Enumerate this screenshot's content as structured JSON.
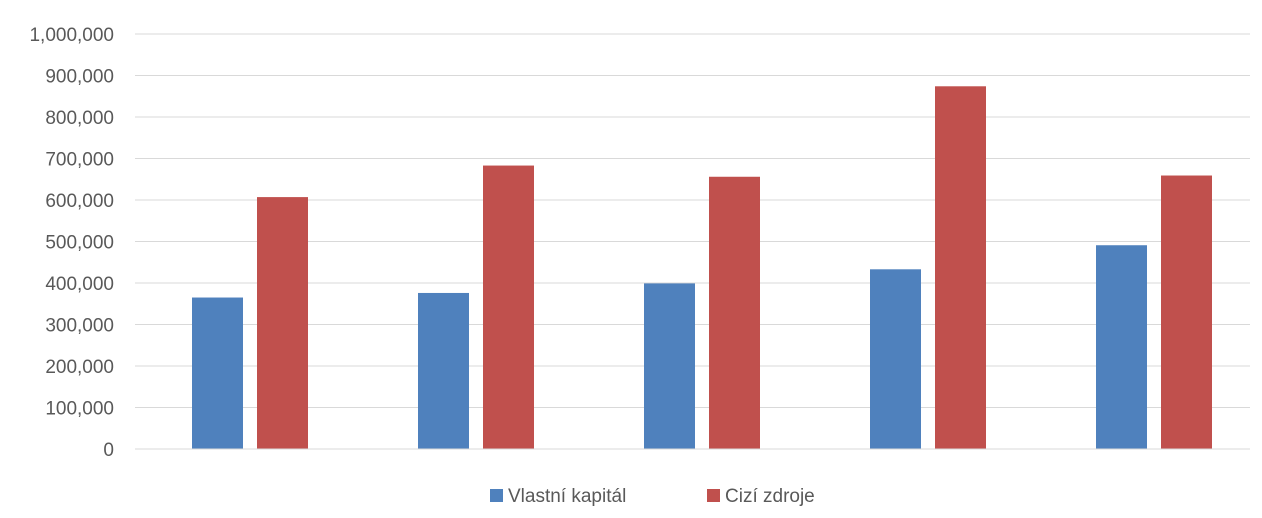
{
  "chart_data": {
    "type": "bar",
    "title": "",
    "xlabel": "",
    "ylabel": "",
    "categories": [
      "",
      "",
      "",
      "",
      ""
    ],
    "ylim": [
      0,
      1000000
    ],
    "yticks": [
      0,
      100000,
      200000,
      300000,
      400000,
      500000,
      600000,
      700000,
      800000,
      900000,
      1000000
    ],
    "ytick_labels": [
      "0",
      "100,000",
      "200,000",
      "300,000",
      "400,000",
      "500,000",
      "600,000",
      "700,000",
      "800,000",
      "900,000",
      "1,000,000"
    ],
    "grid": true,
    "legend_position": "bottom",
    "series": [
      {
        "name": "Vlastní kapitál",
        "color": "#4F81BD",
        "values": [
          365000,
          376000,
          399000,
          433000,
          491000
        ]
      },
      {
        "name": "Cizí zdroje",
        "color": "#C0504D",
        "values": [
          607000,
          683000,
          656000,
          874000,
          659000
        ]
      }
    ]
  }
}
